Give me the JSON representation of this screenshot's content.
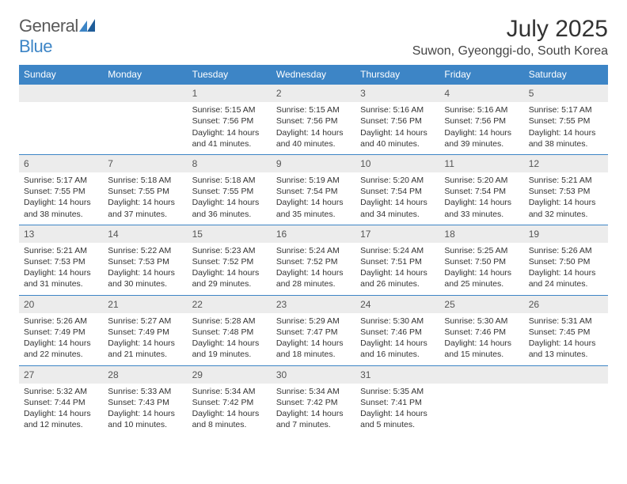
{
  "brand": {
    "general": "General",
    "blue": "Blue"
  },
  "title": "July 2025",
  "location": "Suwon, Gyeonggi-do, South Korea",
  "weekday_header_bg": "#3d85c6",
  "weekday_header_fg": "#ffffff",
  "daynum_bg": "#ececec",
  "border_color": "#3d85c6",
  "weekdays": [
    "Sunday",
    "Monday",
    "Tuesday",
    "Wednesday",
    "Thursday",
    "Friday",
    "Saturday"
  ],
  "weeks": [
    [
      {
        "n": "",
        "lines": []
      },
      {
        "n": "",
        "lines": []
      },
      {
        "n": "1",
        "lines": [
          "Sunrise: 5:15 AM",
          "Sunset: 7:56 PM",
          "Daylight: 14 hours and 41 minutes."
        ]
      },
      {
        "n": "2",
        "lines": [
          "Sunrise: 5:15 AM",
          "Sunset: 7:56 PM",
          "Daylight: 14 hours and 40 minutes."
        ]
      },
      {
        "n": "3",
        "lines": [
          "Sunrise: 5:16 AM",
          "Sunset: 7:56 PM",
          "Daylight: 14 hours and 40 minutes."
        ]
      },
      {
        "n": "4",
        "lines": [
          "Sunrise: 5:16 AM",
          "Sunset: 7:56 PM",
          "Daylight: 14 hours and 39 minutes."
        ]
      },
      {
        "n": "5",
        "lines": [
          "Sunrise: 5:17 AM",
          "Sunset: 7:55 PM",
          "Daylight: 14 hours and 38 minutes."
        ]
      }
    ],
    [
      {
        "n": "6",
        "lines": [
          "Sunrise: 5:17 AM",
          "Sunset: 7:55 PM",
          "Daylight: 14 hours and 38 minutes."
        ]
      },
      {
        "n": "7",
        "lines": [
          "Sunrise: 5:18 AM",
          "Sunset: 7:55 PM",
          "Daylight: 14 hours and 37 minutes."
        ]
      },
      {
        "n": "8",
        "lines": [
          "Sunrise: 5:18 AM",
          "Sunset: 7:55 PM",
          "Daylight: 14 hours and 36 minutes."
        ]
      },
      {
        "n": "9",
        "lines": [
          "Sunrise: 5:19 AM",
          "Sunset: 7:54 PM",
          "Daylight: 14 hours and 35 minutes."
        ]
      },
      {
        "n": "10",
        "lines": [
          "Sunrise: 5:20 AM",
          "Sunset: 7:54 PM",
          "Daylight: 14 hours and 34 minutes."
        ]
      },
      {
        "n": "11",
        "lines": [
          "Sunrise: 5:20 AM",
          "Sunset: 7:54 PM",
          "Daylight: 14 hours and 33 minutes."
        ]
      },
      {
        "n": "12",
        "lines": [
          "Sunrise: 5:21 AM",
          "Sunset: 7:53 PM",
          "Daylight: 14 hours and 32 minutes."
        ]
      }
    ],
    [
      {
        "n": "13",
        "lines": [
          "Sunrise: 5:21 AM",
          "Sunset: 7:53 PM",
          "Daylight: 14 hours and 31 minutes."
        ]
      },
      {
        "n": "14",
        "lines": [
          "Sunrise: 5:22 AM",
          "Sunset: 7:53 PM",
          "Daylight: 14 hours and 30 minutes."
        ]
      },
      {
        "n": "15",
        "lines": [
          "Sunrise: 5:23 AM",
          "Sunset: 7:52 PM",
          "Daylight: 14 hours and 29 minutes."
        ]
      },
      {
        "n": "16",
        "lines": [
          "Sunrise: 5:24 AM",
          "Sunset: 7:52 PM",
          "Daylight: 14 hours and 28 minutes."
        ]
      },
      {
        "n": "17",
        "lines": [
          "Sunrise: 5:24 AM",
          "Sunset: 7:51 PM",
          "Daylight: 14 hours and 26 minutes."
        ]
      },
      {
        "n": "18",
        "lines": [
          "Sunrise: 5:25 AM",
          "Sunset: 7:50 PM",
          "Daylight: 14 hours and 25 minutes."
        ]
      },
      {
        "n": "19",
        "lines": [
          "Sunrise: 5:26 AM",
          "Sunset: 7:50 PM",
          "Daylight: 14 hours and 24 minutes."
        ]
      }
    ],
    [
      {
        "n": "20",
        "lines": [
          "Sunrise: 5:26 AM",
          "Sunset: 7:49 PM",
          "Daylight: 14 hours and 22 minutes."
        ]
      },
      {
        "n": "21",
        "lines": [
          "Sunrise: 5:27 AM",
          "Sunset: 7:49 PM",
          "Daylight: 14 hours and 21 minutes."
        ]
      },
      {
        "n": "22",
        "lines": [
          "Sunrise: 5:28 AM",
          "Sunset: 7:48 PM",
          "Daylight: 14 hours and 19 minutes."
        ]
      },
      {
        "n": "23",
        "lines": [
          "Sunrise: 5:29 AM",
          "Sunset: 7:47 PM",
          "Daylight: 14 hours and 18 minutes."
        ]
      },
      {
        "n": "24",
        "lines": [
          "Sunrise: 5:30 AM",
          "Sunset: 7:46 PM",
          "Daylight: 14 hours and 16 minutes."
        ]
      },
      {
        "n": "25",
        "lines": [
          "Sunrise: 5:30 AM",
          "Sunset: 7:46 PM",
          "Daylight: 14 hours and 15 minutes."
        ]
      },
      {
        "n": "26",
        "lines": [
          "Sunrise: 5:31 AM",
          "Sunset: 7:45 PM",
          "Daylight: 14 hours and 13 minutes."
        ]
      }
    ],
    [
      {
        "n": "27",
        "lines": [
          "Sunrise: 5:32 AM",
          "Sunset: 7:44 PM",
          "Daylight: 14 hours and 12 minutes."
        ]
      },
      {
        "n": "28",
        "lines": [
          "Sunrise: 5:33 AM",
          "Sunset: 7:43 PM",
          "Daylight: 14 hours and 10 minutes."
        ]
      },
      {
        "n": "29",
        "lines": [
          "Sunrise: 5:34 AM",
          "Sunset: 7:42 PM",
          "Daylight: 14 hours and 8 minutes."
        ]
      },
      {
        "n": "30",
        "lines": [
          "Sunrise: 5:34 AM",
          "Sunset: 7:42 PM",
          "Daylight: 14 hours and 7 minutes."
        ]
      },
      {
        "n": "31",
        "lines": [
          "Sunrise: 5:35 AM",
          "Sunset: 7:41 PM",
          "Daylight: 14 hours and 5 minutes."
        ]
      },
      {
        "n": "",
        "lines": []
      },
      {
        "n": "",
        "lines": []
      }
    ]
  ]
}
